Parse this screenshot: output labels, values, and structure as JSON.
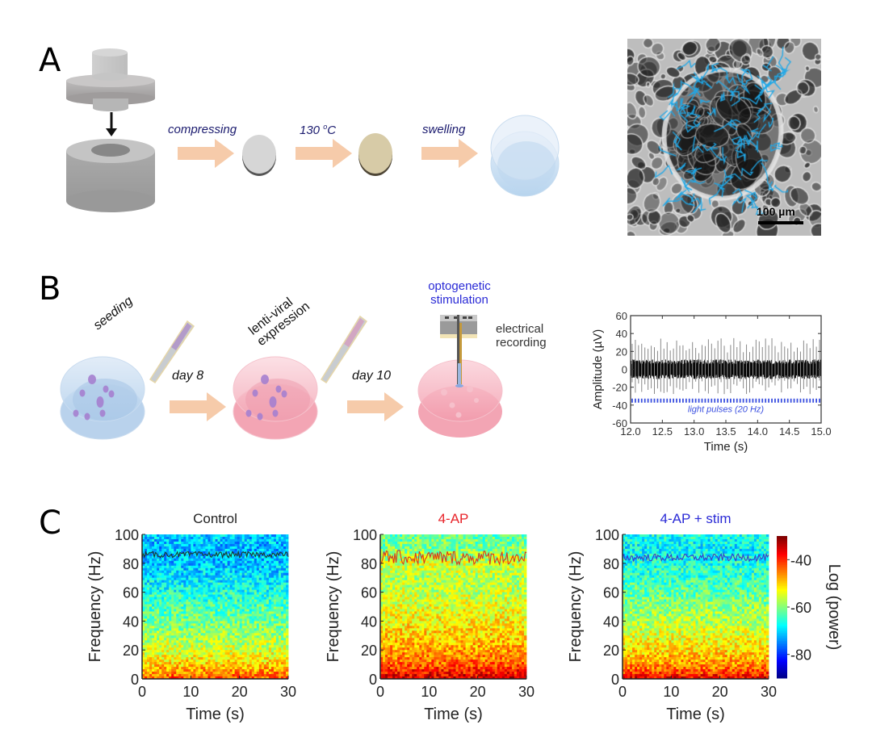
{
  "figure": {
    "panel_labels": [
      "A",
      "B",
      "C"
    ]
  },
  "panel_a": {
    "steps": [
      "compressing",
      "130 °C",
      "swelling"
    ],
    "step_temp_prefix": "130 ",
    "step_temp_sup": "o",
    "step_temp_suffix": "C",
    "scale_bar": "100 µm",
    "colors": {
      "arrow": "#f6cbaa",
      "step_text": "#1a1a6e",
      "disc_plain": "#d6d6d6",
      "disc_baked": "#d7cba7",
      "hydrogel": "#bcd7ee",
      "cells_overlay": "#1fa8e8"
    }
  },
  "panel_b": {
    "steps": [
      "seeding",
      "lenti-viral",
      "expression",
      "day 8",
      "day 10"
    ],
    "opto_label_1": "optogenetic",
    "opto_label_2": "stimulation",
    "elec_label_1": "electrical",
    "elec_label_2": "recording",
    "colors": {
      "dish_blue": "#bcd6ef",
      "dish_pink": "#f4a9b6",
      "cell": "#a57fcf",
      "opto_text": "#2a2ad6"
    }
  },
  "panel_c": {
    "titles": [
      "Control",
      "4-AP",
      "4-AP + stim"
    ],
    "title_colors": [
      "#222222",
      "#e8242a",
      "#2a2ad6"
    ],
    "colorbar_label": "Log (power)",
    "colorbar_ticks": [
      "-40",
      "-60",
      "-80"
    ]
  },
  "chart_data": [
    {
      "type": "line",
      "id": "amplitude-trace",
      "title": "",
      "xlabel": "Time (s)",
      "ylabel": "Amplitude (µV)",
      "xlim": [
        12.0,
        15.0
      ],
      "ylim": [
        -60,
        60
      ],
      "xticks": [
        "12.0",
        "12.5",
        "13.0",
        "13.5",
        "14.0",
        "14.5",
        "15.0"
      ],
      "yticks": [
        "60",
        "40",
        "20",
        "0",
        "-20",
        "-40",
        "-60"
      ],
      "xtick_values": [
        12.0,
        12.5,
        13.0,
        13.5,
        14.0,
        14.5,
        15.0
      ],
      "ytick_values": [
        60,
        40,
        20,
        0,
        -20,
        -40,
        -60
      ],
      "series": [
        {
          "name": "recording",
          "color": "#000000",
          "noise_band_uV": [
            -10,
            10
          ],
          "spike_rate_hz": 20,
          "spike_peak_range_uV": [
            18,
            35
          ],
          "spike_trough_range_uV": [
            -28,
            -12
          ]
        },
        {
          "name": "light pulses (20 Hz)",
          "color": "#3a4fe0",
          "y_uV": -35,
          "rate_hz": 20,
          "style": "dotted"
        }
      ],
      "annotation": "light pulses (20 Hz)"
    },
    {
      "type": "heatmap",
      "id": "spectrogram-control",
      "title": "Control",
      "xlabel": "Time (s)",
      "ylabel": "Frequency (Hz)",
      "xlim": [
        0,
        30
      ],
      "ylim": [
        0,
        100
      ],
      "xticks": [
        "0",
        "10",
        "20",
        "30"
      ],
      "yticks": [
        "0",
        "20",
        "40",
        "60",
        "80",
        "100"
      ],
      "xtick_values": [
        0,
        10,
        20,
        30
      ],
      "ytick_values": [
        0,
        20,
        40,
        60,
        80,
        100
      ],
      "colormap": "jet",
      "clim": [
        -90,
        -30
      ],
      "power_profile_by_freq": {
        "freq_hz": [
          0,
          5,
          10,
          20,
          30,
          40,
          50,
          60,
          70,
          80,
          90,
          100
        ],
        "log_power": [
          -42,
          -46,
          -50,
          -55,
          -58,
          -61,
          -63,
          -66,
          -69,
          -71,
          -72,
          -70
        ]
      },
      "peak_track": {
        "mean_hz": 86,
        "jitter_hz": 2,
        "color": "#1c3c2c"
      }
    },
    {
      "type": "heatmap",
      "id": "spectrogram-4ap",
      "title": "4-AP",
      "xlabel": "Time (s)",
      "ylabel": "Frequency (Hz)",
      "xlim": [
        0,
        30
      ],
      "ylim": [
        0,
        100
      ],
      "xticks": [
        "0",
        "10",
        "20",
        "30"
      ],
      "yticks": [
        "0",
        "20",
        "40",
        "60",
        "80",
        "100"
      ],
      "xtick_values": [
        0,
        10,
        20,
        30
      ],
      "ytick_values": [
        0,
        20,
        40,
        60,
        80,
        100
      ],
      "colormap": "jet",
      "clim": [
        -90,
        -30
      ],
      "power_profile_by_freq": {
        "freq_hz": [
          0,
          5,
          10,
          20,
          30,
          40,
          50,
          60,
          70,
          80,
          90,
          100
        ],
        "log_power": [
          -34,
          -39,
          -43,
          -47,
          -50,
          -52,
          -54,
          -56,
          -57,
          -55,
          -60,
          -62
        ]
      },
      "peak_track": {
        "mean_hz": 84,
        "jitter_hz": 5,
        "color": "#d83a1c"
      }
    },
    {
      "type": "heatmap",
      "id": "spectrogram-4ap-stim",
      "title": "4-AP + stim",
      "xlabel": "Time (s)",
      "ylabel": "Frequency (Hz)",
      "xlim": [
        0,
        30
      ],
      "ylim": [
        0,
        100
      ],
      "xticks": [
        "0",
        "10",
        "20",
        "30"
      ],
      "yticks": [
        "0",
        "20",
        "40",
        "60",
        "80",
        "100"
      ],
      "xtick_values": [
        0,
        10,
        20,
        30
      ],
      "ytick_values": [
        0,
        20,
        40,
        60,
        80,
        100
      ],
      "colormap": "jet",
      "clim": [
        -90,
        -30
      ],
      "power_profile_by_freq": {
        "freq_hz": [
          0,
          5,
          10,
          20,
          30,
          40,
          50,
          60,
          70,
          80,
          90,
          100
        ],
        "log_power": [
          -36,
          -42,
          -46,
          -51,
          -54,
          -57,
          -59,
          -62,
          -64,
          -66,
          -68,
          -66
        ]
      },
      "peak_track": {
        "mean_hz": 84,
        "jitter_hz": 2.5,
        "color": "#3a3ac8"
      }
    }
  ]
}
